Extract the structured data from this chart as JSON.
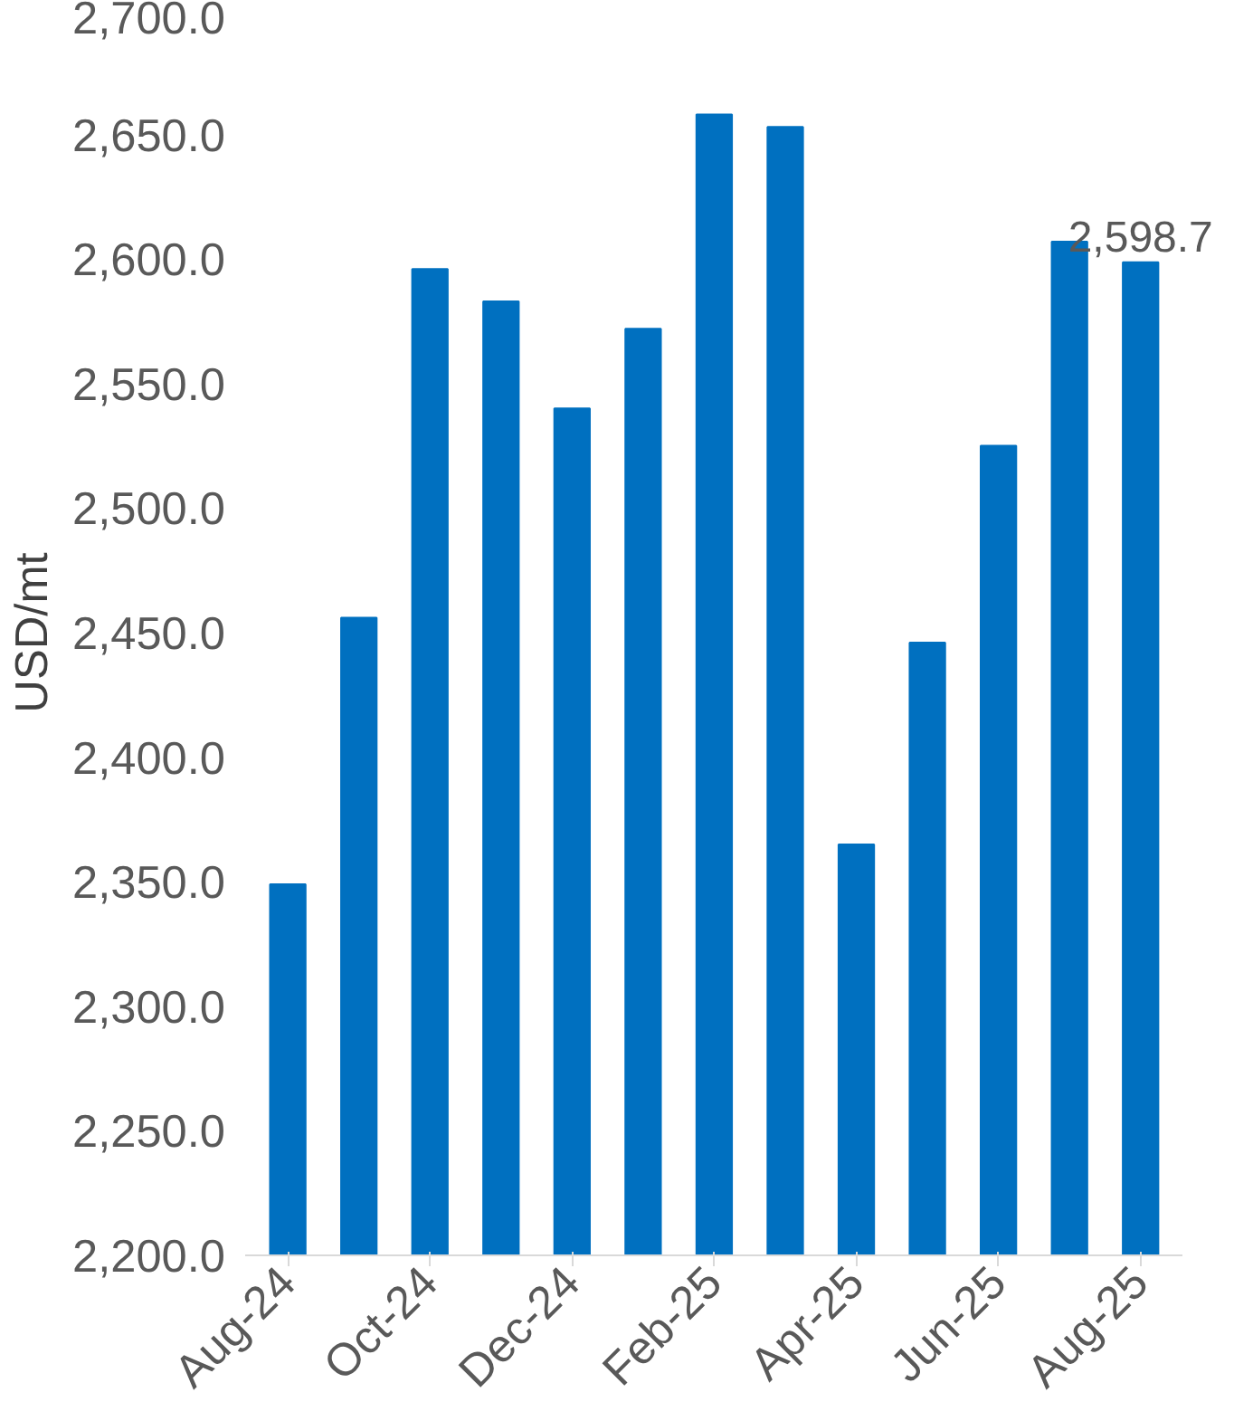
{
  "chart_data": {
    "type": "bar",
    "ylabel": "USD/mt",
    "categories": [
      "Aug-24",
      null,
      "Oct-24",
      null,
      "Dec-24",
      null,
      "Feb-25",
      null,
      "Apr-25",
      null,
      "Jun-25",
      null,
      "Aug-25"
    ],
    "values": [
      2349,
      2456,
      2596,
      2583,
      2540,
      2572,
      2658,
      2653,
      2365,
      2446,
      2525,
      2607,
      2598.7
    ],
    "value_labels": [
      null,
      null,
      null,
      null,
      null,
      null,
      null,
      null,
      null,
      null,
      null,
      null,
      "2,598.7"
    ],
    "color": "#0070c0",
    "ylim": [
      2200,
      2700
    ],
    "yticks": [
      {
        "value": 2200,
        "label": "2,200.0"
      },
      {
        "value": 2250,
        "label": "2,250.0"
      },
      {
        "value": 2300,
        "label": "2,300.0"
      },
      {
        "value": 2350,
        "label": "2,350.0"
      },
      {
        "value": 2400,
        "label": "2,400.0"
      },
      {
        "value": 2450,
        "label": "2,450.0"
      },
      {
        "value": 2500,
        "label": "2,500.0"
      },
      {
        "value": 2550,
        "label": "2,550.0"
      },
      {
        "value": 2600,
        "label": "2,600.0"
      },
      {
        "value": 2650,
        "label": "2,650.0"
      },
      {
        "value": 2700,
        "label": "2,700.0"
      }
    ],
    "grid": false
  }
}
